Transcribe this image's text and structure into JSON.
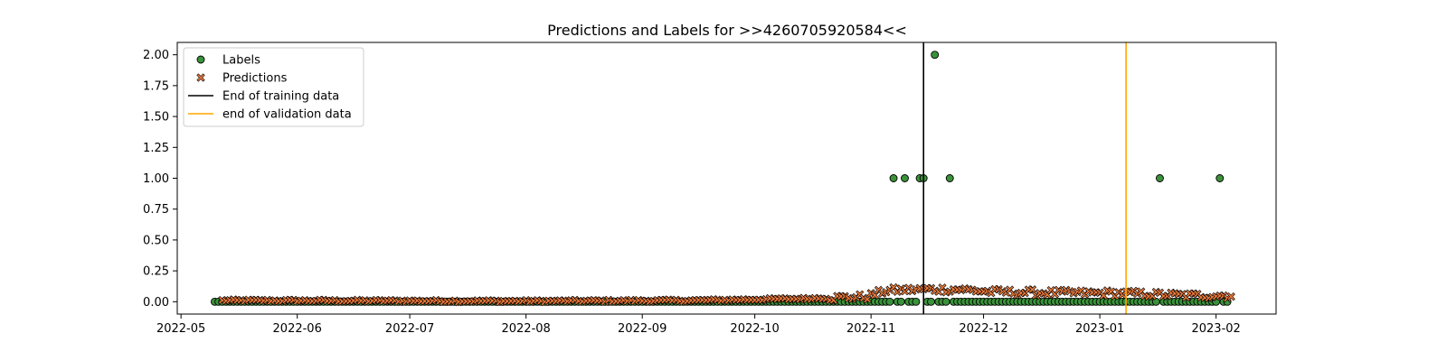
{
  "chart_data": {
    "type": "scatter",
    "title": "Predictions and Labels for >>4260705920584<<",
    "xlabel": "",
    "ylabel": "",
    "x_range": [
      "2022-04-30",
      "2023-02-17"
    ],
    "y_range": [
      -0.1,
      2.1
    ],
    "x_ticks": [
      "2022-05",
      "2022-06",
      "2022-07",
      "2022-08",
      "2022-09",
      "2022-10",
      "2022-11",
      "2022-12",
      "2023-01",
      "2023-02"
    ],
    "y_ticks": [
      "0.00",
      "0.25",
      "0.50",
      "0.75",
      "1.00",
      "1.25",
      "1.50",
      "1.75",
      "2.00"
    ],
    "grid": false,
    "legend_position": "top-left",
    "series": [
      {
        "name": "Labels",
        "marker": "circle",
        "color": "#3a923a",
        "edge_color": "#000000",
        "x_start": "2022-05-10",
        "x_end": "2023-02-04",
        "default_value": 0,
        "exceptions": [
          {
            "x": "2022-11-07",
            "y": 1
          },
          {
            "x": "2022-11-10",
            "y": 1
          },
          {
            "x": "2022-11-14",
            "y": 1
          },
          {
            "x": "2022-11-15",
            "y": 1
          },
          {
            "x": "2022-11-18",
            "y": 2
          },
          {
            "x": "2022-11-22",
            "y": 1
          },
          {
            "x": "2023-01-17",
            "y": 1
          },
          {
            "x": "2023-02-02",
            "y": 1
          }
        ]
      },
      {
        "name": "Predictions",
        "marker": "x",
        "color": "#e8783a",
        "edge_color": "#000000",
        "x_start": "2022-05-12",
        "x_end": "2023-02-05",
        "trend": [
          {
            "x": "2022-05-12",
            "y": 0.01
          },
          {
            "x": "2022-08-01",
            "y": 0.005
          },
          {
            "x": "2022-09-15",
            "y": 0.01
          },
          {
            "x": "2022-10-15",
            "y": 0.025
          },
          {
            "x": "2022-10-31",
            "y": 0.04
          },
          {
            "x": "2022-11-05",
            "y": 0.09
          },
          {
            "x": "2022-11-15",
            "y": 0.1
          },
          {
            "x": "2022-11-25",
            "y": 0.1
          },
          {
            "x": "2022-12-03",
            "y": 0.08
          },
          {
            "x": "2022-12-25",
            "y": 0.07
          },
          {
            "x": "2023-01-05",
            "y": 0.07
          },
          {
            "x": "2023-01-25",
            "y": 0.05
          },
          {
            "x": "2023-02-05",
            "y": 0.05
          }
        ]
      }
    ],
    "vertical_lines": [
      {
        "name": "End of training data",
        "x": "2022-11-15",
        "color": "#000000"
      },
      {
        "name": "end of validation data",
        "x": "2023-01-08",
        "color": "#ffa500"
      }
    ]
  }
}
